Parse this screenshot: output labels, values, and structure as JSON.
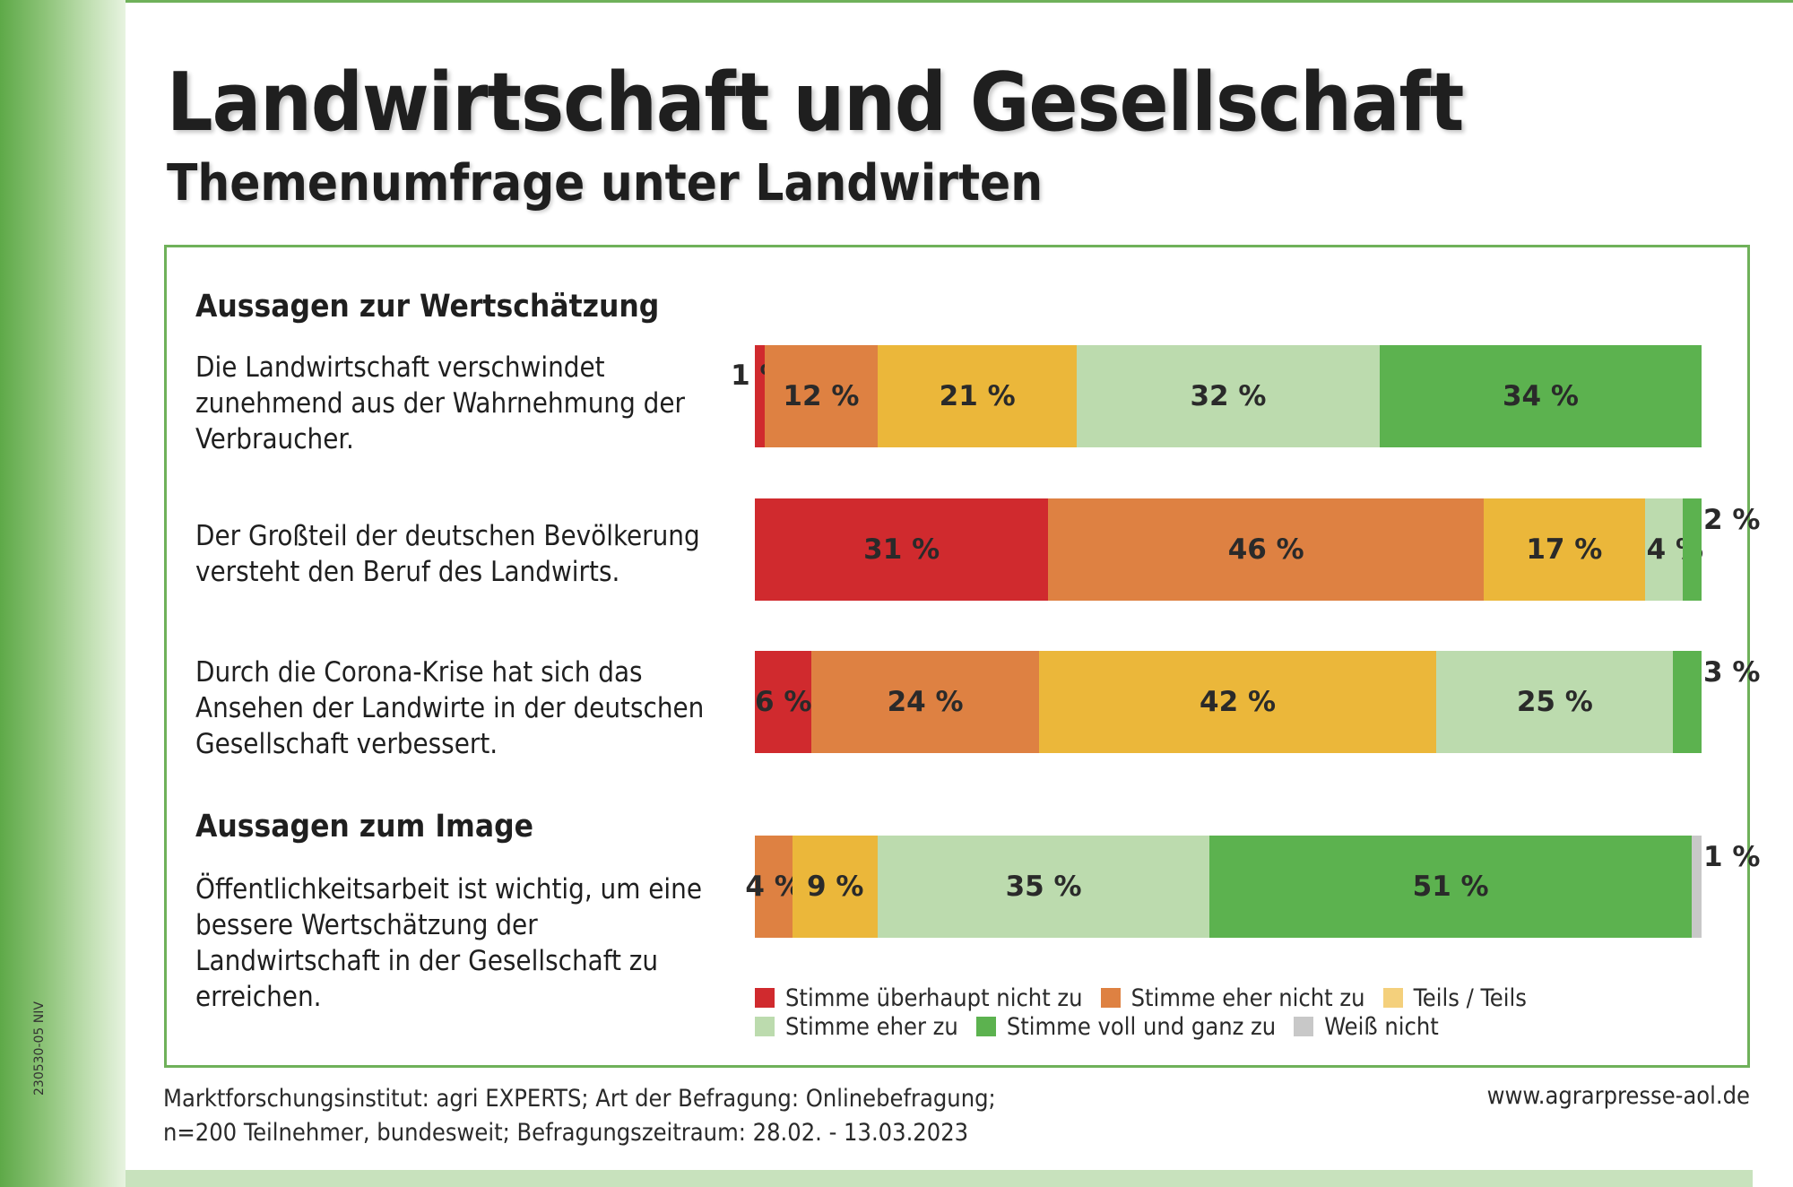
{
  "header": {
    "title": "Landwirtschaft und Gesellschaft",
    "subtitle": "Themenumfrage unter Landwirten"
  },
  "side_code": "230530-05 NIV",
  "colors": {
    "frame_green": "#6fb15a",
    "stimme_ueberhaupt_nicht_zu": "#d02a2e",
    "stimme_eher_nicht_zu": "#de8142",
    "teils_teils": "#ebb73a",
    "stimme_eher_zu": "#bcdbae",
    "stimme_voll_und_ganz_zu": "#5cb24f",
    "weiss_nicht": "#c8c8c8"
  },
  "chart_data": {
    "type": "bar",
    "orientation": "horizontal",
    "stacked": true,
    "unit": "%",
    "sections": [
      {
        "title": "Aussagen zur Wertschätzung",
        "statements": [
          {
            "text": "Die Landwirtschaft verschwindet zunehmend aus der Wahrnehmung der Verbraucher.",
            "values": [
              1,
              12,
              21,
              32,
              34,
              0
            ],
            "labels": [
              "1 %",
              "12 %",
              "21 %",
              "32 %",
              "34 %",
              ""
            ]
          },
          {
            "text": "Der Großteil der deutschen Bevölkerung versteht den Beruf des Landwirts.",
            "values": [
              31,
              46,
              17,
              4,
              2,
              0
            ],
            "labels": [
              "31 %",
              "46 %",
              "17 %",
              "4 %",
              "2 %",
              ""
            ]
          },
          {
            "text": "Durch die Corona-Krise hat sich das Ansehen der Landwirte in der deutschen Gesellschaft verbessert.",
            "values": [
              6,
              24,
              42,
              25,
              3,
              0
            ],
            "labels": [
              "6 %",
              "24 %",
              "42 %",
              "25 %",
              "3 %",
              ""
            ]
          }
        ]
      },
      {
        "title": "Aussagen zum Image",
        "statements": [
          {
            "text": "Öffentlichkeitsarbeit ist wichtig, um eine bessere Wertschätzung der Landwirtschaft in der Gesellschaft zu erreichen.",
            "values": [
              0,
              4,
              9,
              35,
              51,
              1
            ],
            "labels": [
              "",
              "4 %",
              "9 %",
              "35 %",
              "51 %",
              "1 %"
            ]
          }
        ]
      }
    ],
    "legend": [
      "Stimme überhaupt nicht zu",
      "Stimme eher nicht zu",
      "Teils / Teils",
      "Stimme eher zu",
      "Stimme voll und ganz zu",
      "Weiß nicht"
    ],
    "legend_placement": "bottom",
    "grid": false
  },
  "footer": {
    "source_line1": "Marktforschungsinstitut: agri EXPERTS; Art der Befragung: Onlinebefragung;",
    "source_line2": "n=200 Teilnehmer, bundesweit; Befragungszeitraum: 28.02. - 13.03.2023",
    "website": "www.agrarpresse-aol.de"
  }
}
